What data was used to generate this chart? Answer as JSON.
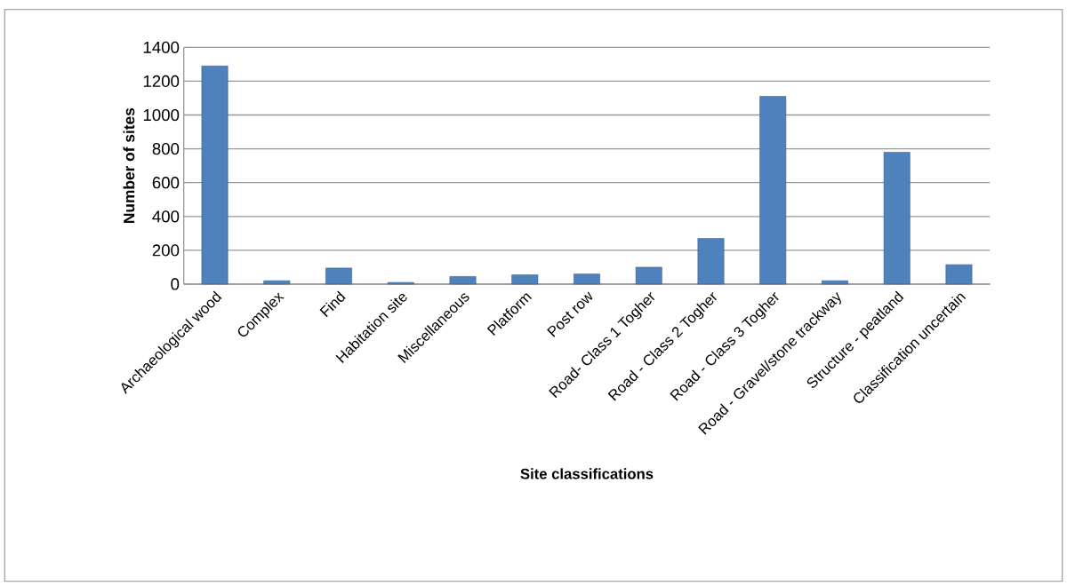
{
  "chart_data": {
    "type": "bar",
    "xlabel": "Site classifications",
    "ylabel": "Number of sites",
    "categories": [
      "Archaeological wood",
      "Complex",
      "Find",
      "Habitation site",
      "Miscellaneous",
      "Platform",
      "Post row",
      "Road- Class 1 Togher",
      "Road - Class 2 Togher",
      "Road - Class 3 Togher",
      "Road - Gravel/stone trackway",
      "Structure - peatland",
      "Classification uncertain"
    ],
    "values": [
      1290,
      20,
      95,
      10,
      45,
      55,
      60,
      100,
      270,
      1110,
      20,
      780,
      115
    ],
    "color": "#4f81bd",
    "ylim": [
      0,
      1400
    ],
    "yticks": [
      0,
      200,
      400,
      600,
      800,
      1000,
      1200,
      1400
    ],
    "grid": "y"
  }
}
